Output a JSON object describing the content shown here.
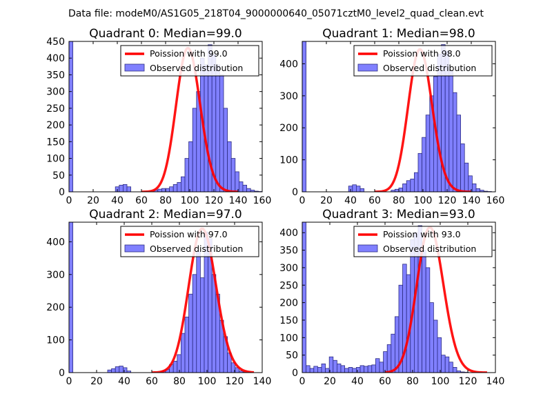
{
  "chart_data": {
    "suptitle": "Data file: modeM0/AS1G05_218T04_9000000640_05071cztM0_level2_quad_clean.evt",
    "panels": [
      {
        "type": "bar",
        "title": "Quadrant 0: Median=99.0",
        "legend": {
          "poisson": "Poission with 99.0",
          "observed": "Observed distribution",
          "placement": "upper-right"
        },
        "xlim": [
          0,
          160
        ],
        "ylim": [
          0,
          450
        ],
        "xticks": [
          0,
          20,
          40,
          60,
          80,
          100,
          120,
          140,
          160
        ],
        "xtick_labels": [
          "0",
          "20",
          "40",
          "60",
          "80",
          "100",
          "120",
          "140",
          "160"
        ],
        "yticks": [
          0,
          50,
          100,
          150,
          200,
          250,
          300,
          350,
          400,
          450
        ],
        "ytick_labels": [
          "0",
          "50",
          "100",
          "150",
          "200",
          "250",
          "300",
          "350",
          "400",
          "450"
        ],
        "bin_width": 3.2,
        "bins_start": 0,
        "values": [
          450,
          0,
          0,
          0,
          0,
          0,
          0,
          0,
          0,
          0,
          0,
          0,
          15,
          20,
          22,
          15,
          0,
          0,
          0,
          0,
          0,
          0,
          5,
          8,
          10,
          10,
          15,
          22,
          28,
          45,
          100,
          150,
          250,
          300,
          400,
          380,
          440,
          410,
          380,
          350,
          250,
          150,
          100,
          60,
          30,
          20,
          10,
          5,
          2,
          1
        ],
        "poisson_mean": 99.0,
        "poisson_peak": 430,
        "poisson_x_range": [
          60,
          140
        ]
      },
      {
        "type": "bar",
        "title": "Quadrant 1: Median=98.0",
        "legend": {
          "poisson": "Poission with 98.0",
          "observed": "Observed distribution",
          "placement": "upper-right"
        },
        "xlim": [
          0,
          160
        ],
        "ylim": [
          0,
          470
        ],
        "xticks": [
          0,
          20,
          40,
          60,
          80,
          100,
          120,
          140,
          160
        ],
        "xtick_labels": [
          "0",
          "20",
          "40",
          "60",
          "80",
          "100",
          "120",
          "140",
          "160"
        ],
        "yticks": [
          0,
          100,
          200,
          300,
          400
        ],
        "ytick_labels": [
          "0",
          "100",
          "200",
          "300",
          "400"
        ],
        "bin_width": 3.2,
        "bins_start": 0,
        "values": [
          470,
          0,
          0,
          0,
          0,
          0,
          0,
          0,
          0,
          0,
          0,
          0,
          18,
          22,
          18,
          10,
          0,
          0,
          0,
          0,
          0,
          0,
          0,
          5,
          8,
          12,
          25,
          35,
          40,
          60,
          120,
          170,
          240,
          300,
          360,
          430,
          460,
          440,
          380,
          310,
          240,
          150,
          90,
          50,
          25,
          10,
          5,
          2,
          1,
          0
        ],
        "poisson_mean": 98.0,
        "poisson_peak": 445,
        "poisson_x_range": [
          60,
          140
        ]
      },
      {
        "type": "bar",
        "title": "Quadrant 2: Median=97.0",
        "legend": {
          "poisson": "Poission with 97.0",
          "observed": "Observed distribution",
          "placement": "upper-right"
        },
        "xlim": [
          0,
          140
        ],
        "ylim": [
          0,
          460
        ],
        "xticks": [
          0,
          20,
          40,
          60,
          80,
          100,
          120,
          140
        ],
        "xtick_labels": [
          "0",
          "20",
          "40",
          "60",
          "80",
          "100",
          "120",
          "140"
        ],
        "yticks": [
          0,
          100,
          200,
          300,
          400
        ],
        "ytick_labels": [
          "0",
          "100",
          "200",
          "300",
          "400"
        ],
        "bin_width": 2.8,
        "bins_start": 0,
        "values": [
          460,
          0,
          0,
          0,
          0,
          0,
          0,
          0,
          0,
          0,
          8,
          12,
          18,
          20,
          15,
          5,
          0,
          0,
          0,
          0,
          0,
          0,
          0,
          0,
          5,
          10,
          25,
          35,
          55,
          120,
          170,
          240,
          300,
          370,
          290,
          430,
          410,
          300,
          240,
          160,
          110,
          60,
          30,
          15,
          5,
          2,
          1,
          0
        ],
        "poisson_mean": 97.0,
        "poisson_peak": 440,
        "poisson_x_range": [
          60,
          134
        ]
      },
      {
        "type": "bar",
        "title": "Quadrant 3: Median=93.0",
        "legend": {
          "poisson": "Poission with 93.0",
          "observed": "Observed distribution",
          "placement": "upper-right"
        },
        "xlim": [
          0,
          140
        ],
        "ylim": [
          0,
          430
        ],
        "xticks": [
          0,
          20,
          40,
          60,
          80,
          100,
          120,
          140
        ],
        "xtick_labels": [
          "0",
          "20",
          "40",
          "60",
          "80",
          "100",
          "120",
          "140"
        ],
        "yticks": [
          0,
          50,
          100,
          150,
          200,
          250,
          300,
          350,
          400
        ],
        "ytick_labels": [
          "0",
          "50",
          "100",
          "150",
          "200",
          "250",
          "300",
          "350",
          "400"
        ],
        "bin_width": 2.8,
        "bins_start": 0,
        "values": [
          430,
          20,
          12,
          18,
          15,
          25,
          12,
          45,
          35,
          25,
          20,
          12,
          15,
          12,
          15,
          20,
          18,
          20,
          22,
          40,
          30,
          60,
          80,
          110,
          160,
          250,
          310,
          280,
          380,
          400,
          420,
          350,
          300,
          200,
          150,
          100,
          50,
          45,
          30,
          15,
          5,
          2,
          1,
          0,
          0,
          0,
          0,
          0
        ],
        "poisson_mean": 93.0,
        "poisson_peak": 415,
        "poisson_x_range": [
          60,
          134
        ]
      }
    ]
  }
}
